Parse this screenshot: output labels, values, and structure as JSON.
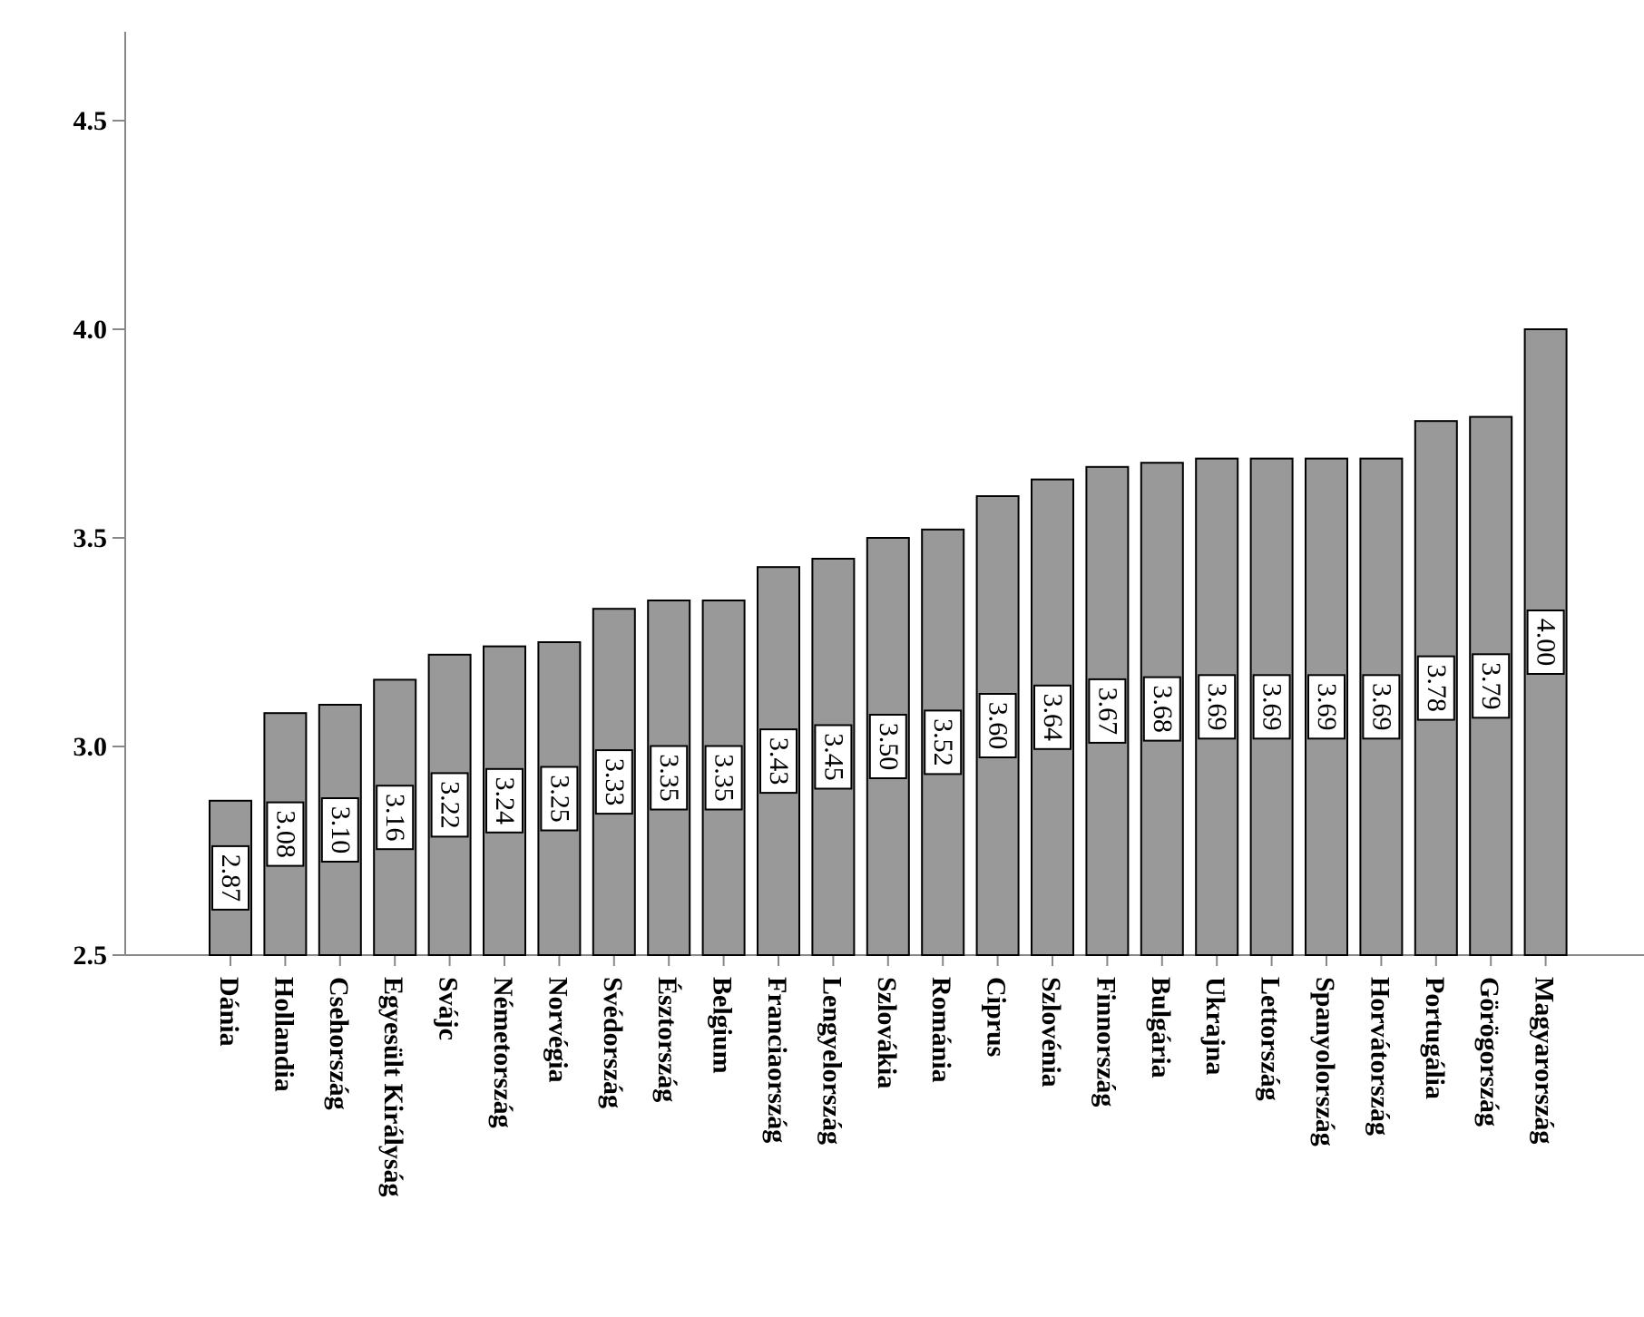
{
  "chart_data": {
    "type": "bar",
    "title": "",
    "xlabel": "",
    "ylabel": "",
    "ylim": [
      2.5,
      4.7
    ],
    "yticks": [
      "2.5",
      "3.0",
      "3.5",
      "4.0",
      "4.5"
    ],
    "grid": false,
    "legend": "none",
    "bar_color": "#999999",
    "categories": [
      "Dánia",
      "Hollandia",
      "Csehország",
      "Egyesült Királyság",
      "Svájc",
      "Németország",
      "Norvégia",
      "Svédország",
      "Észtország",
      "Belgium",
      "Franciaország",
      "Lengyelország",
      "Szlovákia",
      "Románia",
      "Ciprus",
      "Szlovénia",
      "Finnország",
      "Bulgária",
      "Ukrajna",
      "Lettország",
      "Spanyolország",
      "Horvátország",
      "Portugália",
      "Görögország",
      "Magyarország"
    ],
    "values": [
      2.87,
      3.08,
      3.1,
      3.16,
      3.22,
      3.24,
      3.25,
      3.33,
      3.35,
      3.35,
      3.43,
      3.45,
      3.5,
      3.52,
      3.6,
      3.64,
      3.67,
      3.68,
      3.69,
      3.69,
      3.69,
      3.69,
      3.78,
      3.79,
      4.0
    ],
    "value_labels": [
      "2.87",
      "3.08",
      "3.10",
      "3.16",
      "3.22",
      "3.24",
      "3.25",
      "3.33",
      "3.35",
      "3.35",
      "3.43",
      "3.45",
      "3.50",
      "3.52",
      "3.60",
      "3.64",
      "3.67",
      "3.68",
      "3.69",
      "3.69",
      "3.69",
      "3.69",
      "3.78",
      "3.79",
      "4.00"
    ]
  }
}
